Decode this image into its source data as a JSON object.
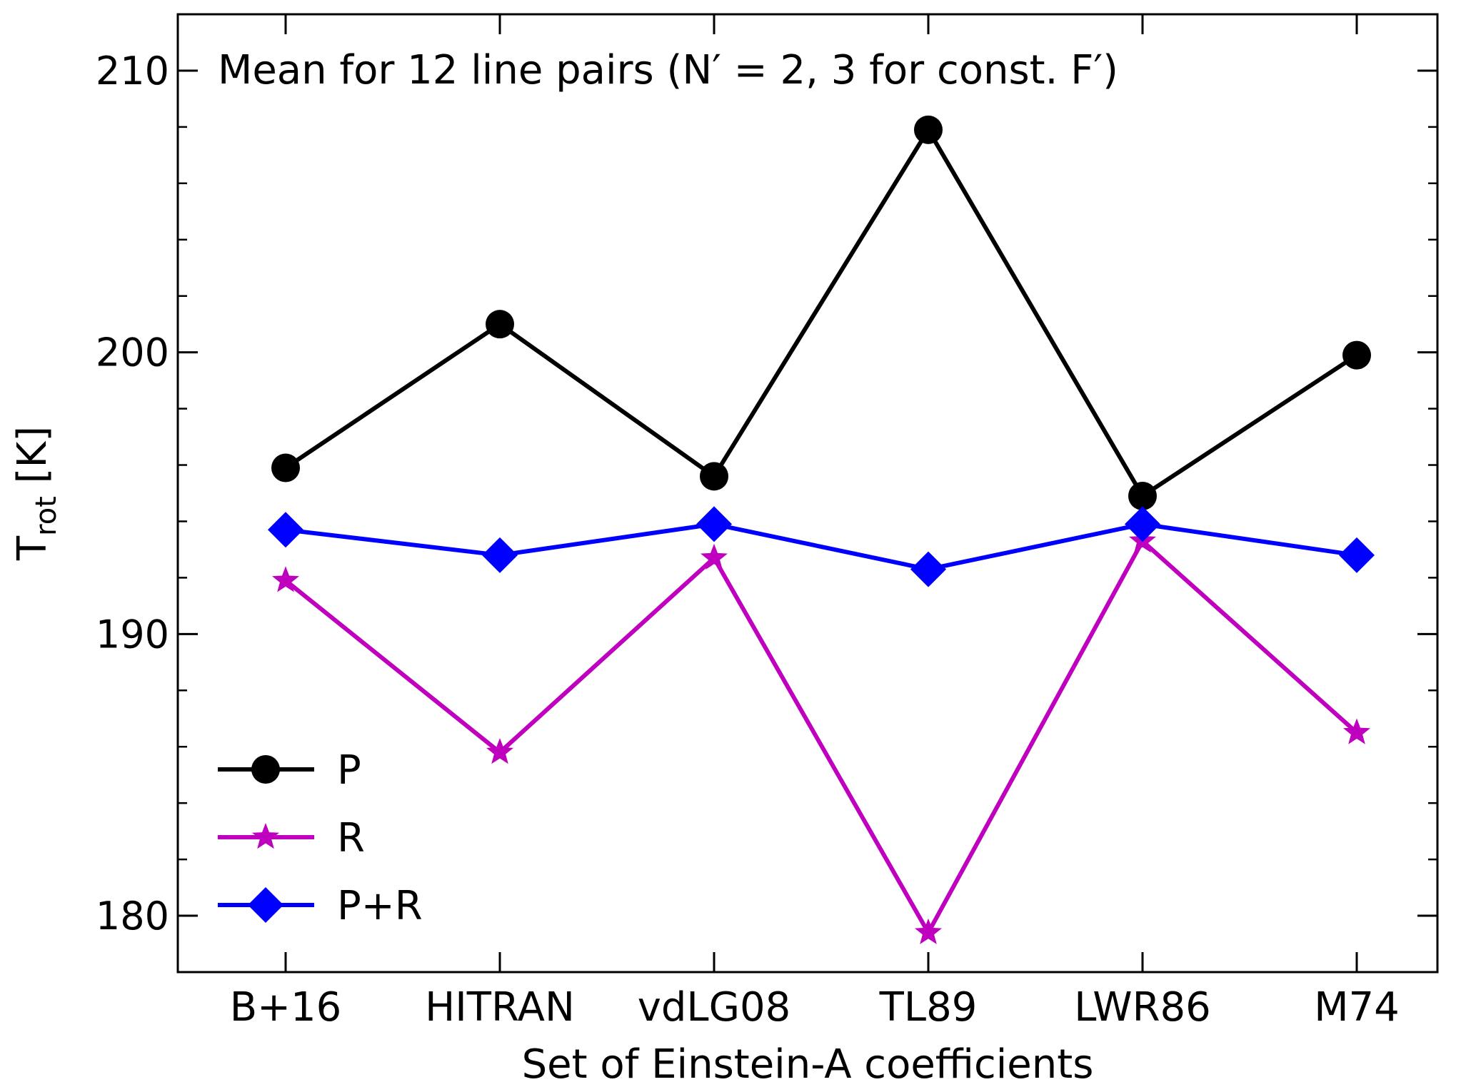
{
  "chart_data": {
    "type": "line",
    "title": "",
    "annotation": "Mean for 12 line pairs (N′ = 2, 3 for const. F′)",
    "xlabel": "Set of Einstein-A coefficients",
    "ylabel": {
      "main": "T",
      "sub": "rot",
      "unit": " [K]"
    },
    "categories": [
      "B+16",
      "HITRAN",
      "vdLG08",
      "TL89",
      "LWR86",
      "M74"
    ],
    "ylim": [
      178,
      212
    ],
    "yticks": [
      180,
      190,
      200,
      210
    ],
    "y_minor_step": 2,
    "grid": false,
    "legend_position": "lower-left",
    "series": [
      {
        "name": "P",
        "color": "#000000",
        "marker": "circle",
        "values": [
          195.9,
          201.0,
          195.6,
          207.9,
          194.9,
          199.9
        ]
      },
      {
        "name": "R",
        "color": "#bf00bf",
        "marker": "star",
        "values": [
          191.9,
          185.8,
          192.7,
          179.4,
          193.3,
          186.5
        ]
      },
      {
        "name": "P+R",
        "color": "#0000ff",
        "marker": "diamond",
        "values": [
          193.7,
          192.8,
          193.9,
          192.3,
          193.9,
          192.8
        ]
      }
    ]
  }
}
